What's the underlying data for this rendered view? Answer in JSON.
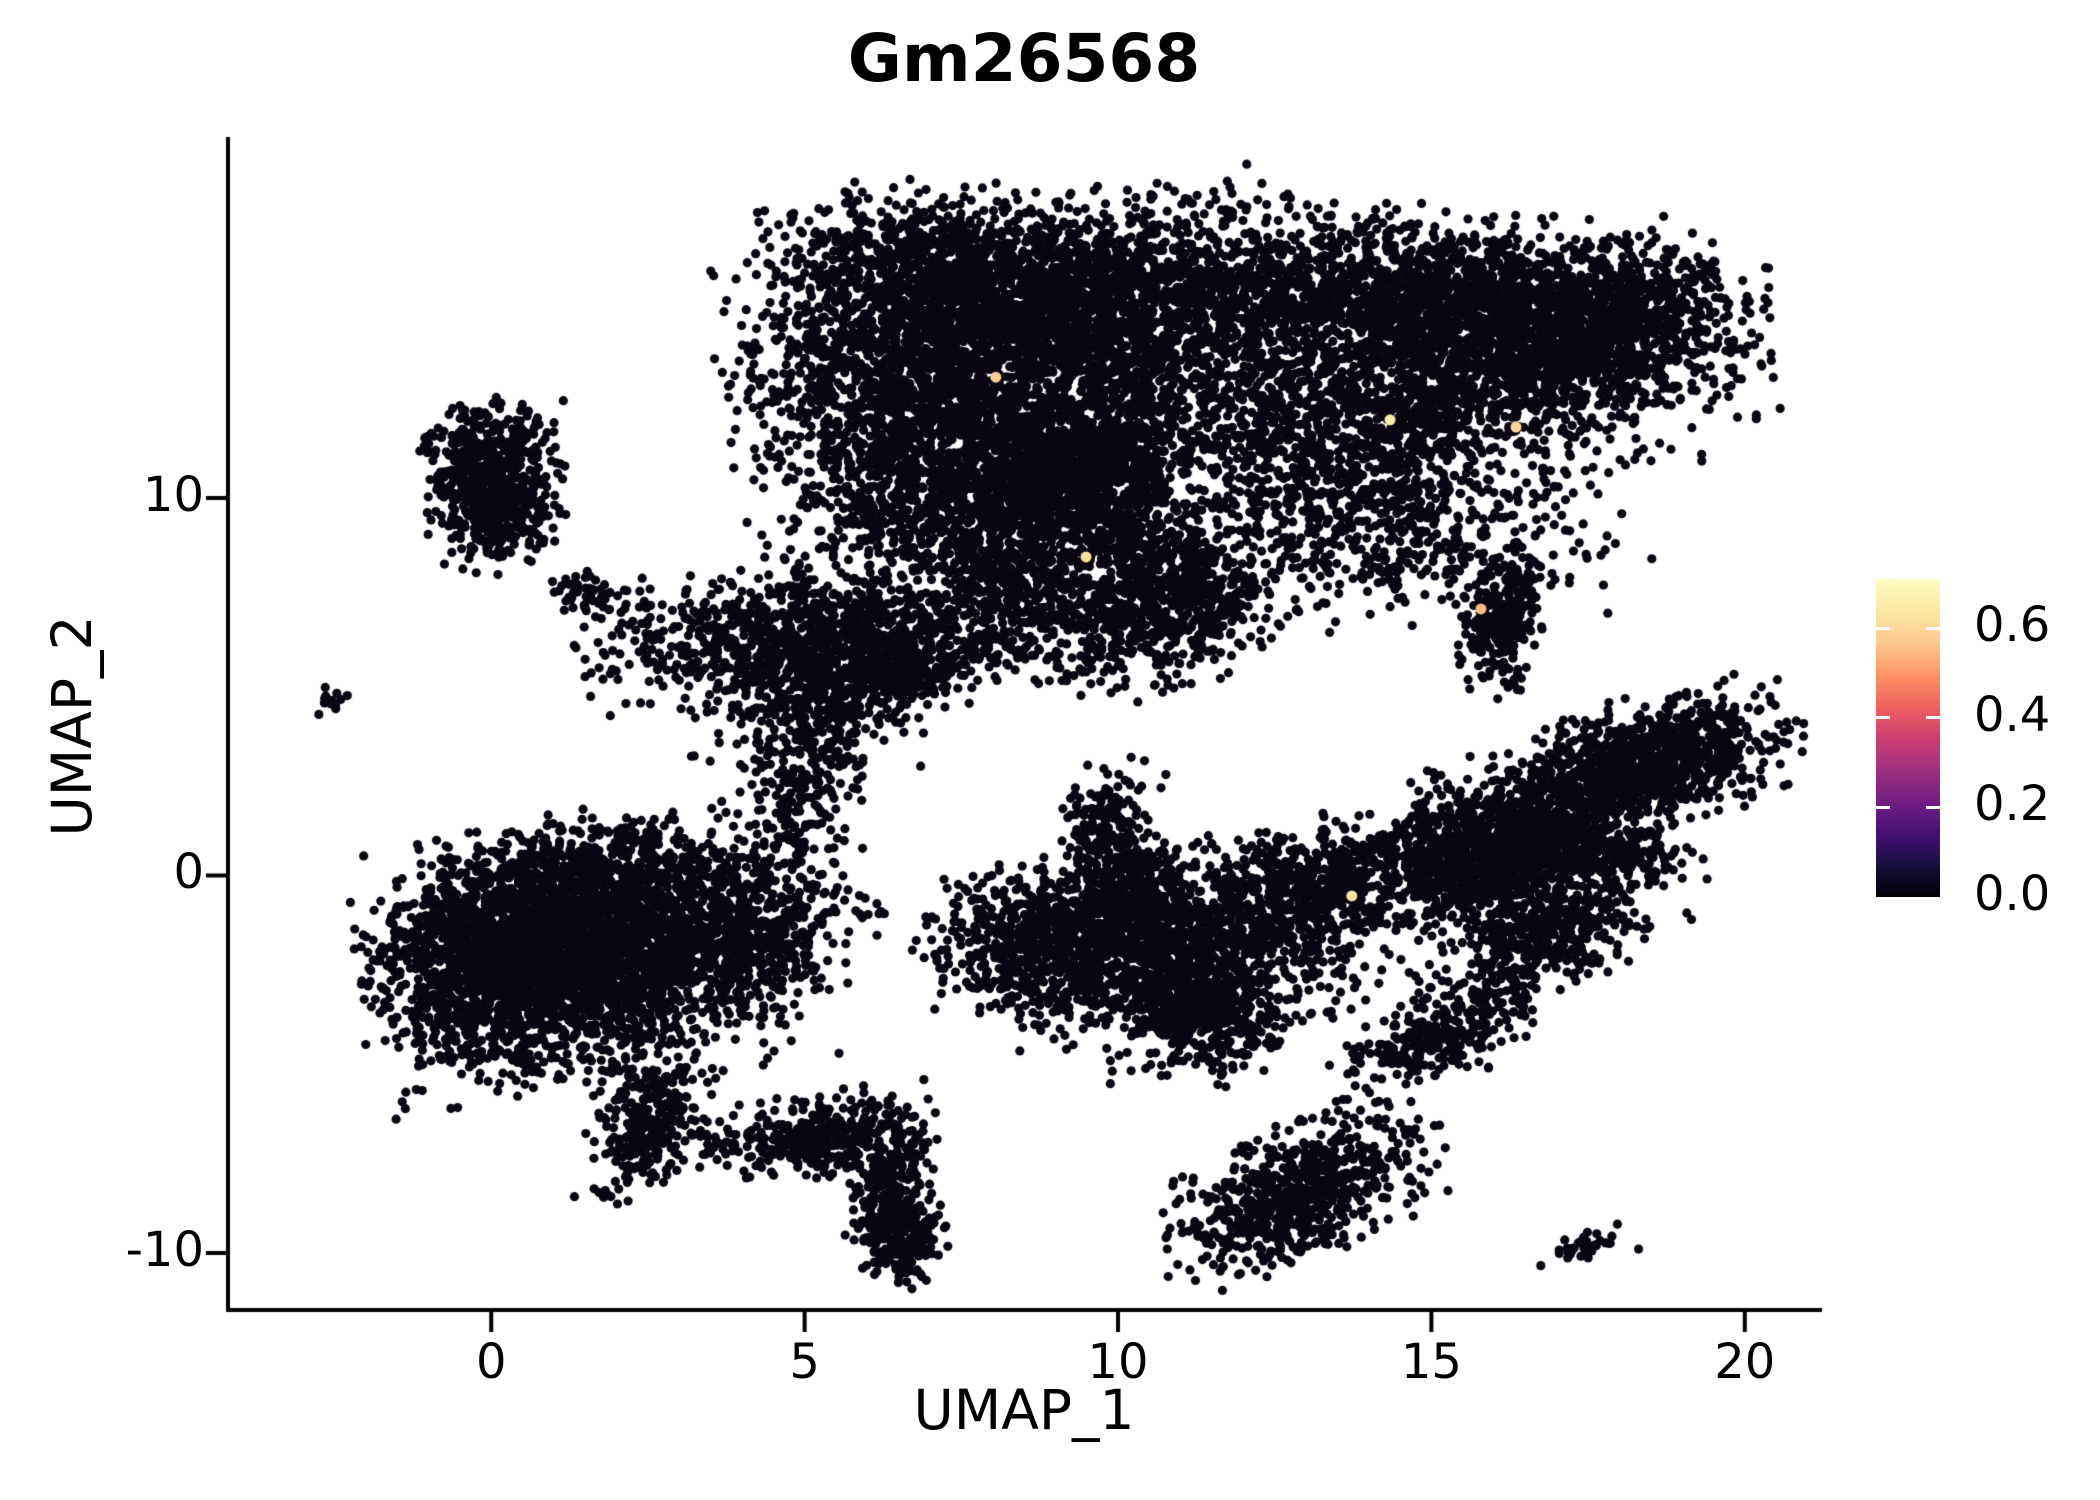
{
  "figure": {
    "title": "Gm26568",
    "xlabel": "UMAP_1",
    "ylabel": "UMAP_2"
  },
  "chart_data": {
    "type": "scatter",
    "subtype": "umap-feature-plot",
    "title": "Gm26568",
    "xlabel": "UMAP_1",
    "ylabel": "UMAP_2",
    "xlim": [
      -4.2,
      21.2
    ],
    "ylim": [
      -11.51,
      19.51
    ],
    "x_ticks": [
      0,
      5,
      10,
      15,
      20
    ],
    "y_ticks": [
      -10,
      0,
      10
    ],
    "grid": false,
    "legend_position": "right",
    "background": "#ffffff",
    "axis_color": "#000000",
    "point_color": "#0a0612",
    "point_radius_px": 4.6,
    "colorbar": {
      "vmin": 0.0,
      "vmax": 0.71,
      "ticks": [
        0.0,
        0.2,
        0.4,
        0.6
      ],
      "tick_labels": [
        "0.0",
        "0.2",
        "0.4",
        "0.6"
      ],
      "colormap": "magma",
      "stops": [
        "#000004",
        "#180f3e",
        "#451077",
        "#721f81",
        "#9f2f7f",
        "#cd4071",
        "#f1605d",
        "#fd9567",
        "#fec98d",
        "#fbe8a4",
        "#fcfdbf"
      ]
    },
    "seed": 42,
    "clusters": [
      {
        "id": "top-left-lobe-core",
        "n": 2600,
        "u": 8.28,
        "v": 14.71,
        "su": 1.91,
        "sv": 1.3,
        "rot": -10
      },
      {
        "id": "top-left-lobe-lower",
        "n": 1500,
        "u": 8.12,
        "v": 10.74,
        "su": 1.6,
        "sv": 1.3,
        "rot": -15
      },
      {
        "id": "top-left-lobe-upper",
        "n": 600,
        "u": 7.0,
        "v": 16.44,
        "su": 1.28,
        "sv": 0.8,
        "rot": 0
      },
      {
        "id": "top-dark-knot",
        "n": 700,
        "u": 9.31,
        "v": 10.61,
        "su": 0.72,
        "sv": 0.9,
        "rot": 0
      },
      {
        "id": "top-bridge-sparse",
        "n": 700,
        "u": 11.15,
        "v": 14.18,
        "su": 1.44,
        "sv": 1.7,
        "rot": 0
      },
      {
        "id": "top-right-lobe-upper",
        "n": 2000,
        "u": 15.3,
        "v": 15.24,
        "su": 2.07,
        "sv": 1.0,
        "rot": 5
      },
      {
        "id": "top-right-lobe-mid",
        "n": 1400,
        "u": 14.98,
        "v": 12.6,
        "su": 2.23,
        "sv": 1.1,
        "rot": -8
      },
      {
        "id": "top-right-tip",
        "n": 500,
        "u": 17.85,
        "v": 14.45,
        "su": 0.96,
        "sv": 0.9,
        "rot": -30
      },
      {
        "id": "top-right-lower-sparse",
        "n": 700,
        "u": 14.18,
        "v": 9.42,
        "su": 1.75,
        "sv": 1.2,
        "rot": 0
      },
      {
        "id": "top-left-tail",
        "n": 450,
        "u": 8.2,
        "v": 7.7,
        "su": 0.88,
        "sv": 1.19,
        "rot": 0
      },
      {
        "id": "top-beak",
        "n": 650,
        "u": 10.75,
        "v": 7.3,
        "su": 0.88,
        "sv": 1.0,
        "rot": -20
      },
      {
        "id": "top-under-scatter",
        "n": 350,
        "u": 9.55,
        "v": 8.36,
        "su": 1.12,
        "sv": 1.32,
        "rot": 0
      },
      {
        "id": "top-left-edge-scatter",
        "n": 450,
        "u": 6.2,
        "v": 12.07,
        "su": 0.88,
        "sv": 1.5,
        "rot": 0
      },
      {
        "id": "upper-left-island-top",
        "n": 420,
        "u": 0.02,
        "v": 11.0,
        "su": 0.48,
        "sv": 0.75,
        "rot": 0
      },
      {
        "id": "upper-left-island-bottom",
        "n": 260,
        "u": 0.06,
        "v": 9.42,
        "su": 0.51,
        "sv": 0.58,
        "rot": 0
      },
      {
        "id": "far-left-dash",
        "n": 14,
        "u": -2.63,
        "v": 4.62,
        "su": 0.16,
        "sv": 0.19,
        "rot": 0
      },
      {
        "id": "small-trail-knot",
        "n": 45,
        "u": 1.42,
        "v": 7.56,
        "su": 0.22,
        "sv": 0.26,
        "rot": 0
      },
      {
        "id": "small-trail-dots",
        "n": 16,
        "u": 1.98,
        "v": 7.28,
        "su": 0.4,
        "sv": 0.21,
        "rot": -15
      },
      {
        "id": "mid-left-cap",
        "n": 900,
        "u": 5.09,
        "v": 6.37,
        "su": 1.52,
        "sv": 0.85,
        "rot": -5
      },
      {
        "id": "mid-left-cap-arm",
        "n": 300,
        "u": 6.52,
        "v": 5.44,
        "su": 0.72,
        "sv": 0.58,
        "rot": -15
      },
      {
        "id": "mid-left-under",
        "n": 250,
        "u": 4.93,
        "v": 4.65,
        "su": 0.88,
        "sv": 0.79,
        "rot": 0
      },
      {
        "id": "mid-left-trail",
        "n": 160,
        "u": 5.09,
        "v": 3.06,
        "su": 0.48,
        "sv": 1.06,
        "rot": 0
      },
      {
        "id": "mid-left-trail-low",
        "n": 80,
        "u": 4.77,
        "v": 1.47,
        "su": 0.4,
        "sv": 0.79,
        "rot": 0
      },
      {
        "id": "left-island-main",
        "n": 2400,
        "u": 1.58,
        "v": -2.11,
        "su": 1.52,
        "sv": 1.45,
        "rot": -8
      },
      {
        "id": "left-island-west",
        "n": 900,
        "u": 0.14,
        "v": -2.24,
        "su": 0.88,
        "sv": 1.25,
        "rot": 0
      },
      {
        "id": "left-island-tail",
        "n": 500,
        "u": 3.97,
        "v": -1.44,
        "su": 0.96,
        "sv": 0.93,
        "rot": -12
      },
      {
        "id": "left-island-top-edge",
        "n": 400,
        "u": 1.74,
        "v": 0.15,
        "su": 1.28,
        "sv": 0.66,
        "rot": 0
      },
      {
        "id": "center-arm-tip",
        "n": 180,
        "u": 9.79,
        "v": 1.07,
        "su": 0.32,
        "sv": 0.93,
        "rot": 20
      },
      {
        "id": "center-arm-base",
        "n": 250,
        "u": 10.27,
        "v": -0.38,
        "su": 0.48,
        "sv": 0.79,
        "rot": 0
      },
      {
        "id": "center-west-wing",
        "n": 800,
        "u": 9.0,
        "v": -1.71,
        "su": 0.96,
        "sv": 0.93,
        "rot": -8
      },
      {
        "id": "center-body",
        "n": 1200,
        "u": 11.31,
        "v": -1.97,
        "su": 1.28,
        "sv": 1.2,
        "rot": -15
      },
      {
        "id": "center-south-point",
        "n": 350,
        "u": 11.39,
        "v": -3.56,
        "su": 0.56,
        "sv": 0.66,
        "rot": 30
      },
      {
        "id": "center-east-arm",
        "n": 450,
        "u": 13.38,
        "v": -0.38,
        "su": 0.88,
        "sv": 0.74,
        "rot": -10
      },
      {
        "id": "right-top-bar",
        "n": 700,
        "u": 18.72,
        "v": 3.06,
        "su": 0.96,
        "sv": 0.74,
        "rot": -12
      },
      {
        "id": "right-upper-diagonal",
        "n": 600,
        "u": 17.21,
        "v": 1.99,
        "su": 1.12,
        "sv": 0.79,
        "rot": -25
      },
      {
        "id": "right-central-knot",
        "n": 700,
        "u": 16.09,
        "v": 0.54,
        "su": 0.8,
        "sv": 1.06,
        "rot": 0
      },
      {
        "id": "right-mid-arm",
        "n": 250,
        "u": 17.69,
        "v": 0.6,
        "su": 0.72,
        "sv": 0.4,
        "rot": 5
      },
      {
        "id": "right-lower-arm",
        "n": 450,
        "u": 16.81,
        "v": -1.58,
        "su": 0.96,
        "sv": 0.74,
        "rot": -28
      },
      {
        "id": "right-connector",
        "n": 200,
        "u": 14.98,
        "v": 0.15,
        "su": 0.64,
        "sv": 0.66,
        "rot": 0
      },
      {
        "id": "right-comma",
        "n": 280,
        "u": 16.12,
        "v": 6.77,
        "su": 0.29,
        "sv": 0.85,
        "rot": 15
      },
      {
        "id": "right-small-blob",
        "n": 260,
        "u": 15.1,
        "v": -4.3,
        "su": 0.72,
        "sv": 0.48,
        "rot": -18
      },
      {
        "id": "bottom-left-knot",
        "n": 300,
        "u": 2.5,
        "v": -6.53,
        "su": 0.41,
        "sv": 0.93,
        "rot": 10
      },
      {
        "id": "bottom-left-dots",
        "n": 25,
        "u": 3.73,
        "v": -7.0,
        "su": 0.48,
        "sv": 0.26,
        "rot": 0
      },
      {
        "id": "bottom-arc",
        "n": 380,
        "u": 5.33,
        "v": -6.87,
        "su": 0.77,
        "sv": 0.48,
        "rot": -8
      },
      {
        "id": "bottom-arc-descend",
        "n": 150,
        "u": 6.36,
        "v": -8.2,
        "su": 0.29,
        "sv": 0.79,
        "rot": 25
      },
      {
        "id": "bottom-arc-tail",
        "n": 220,
        "u": 6.56,
        "v": -9.52,
        "su": 0.29,
        "sv": 0.6,
        "rot": 0
      },
      {
        "id": "bottom-center-island",
        "n": 700,
        "u": 12.9,
        "v": -8.38,
        "su": 0.99,
        "sv": 0.75,
        "rot": -25
      },
      {
        "id": "bottom-right-dash",
        "n": 40,
        "u": 17.5,
        "v": -9.84,
        "su": 0.32,
        "sv": 0.21,
        "rot": -10
      }
    ],
    "highlight_points": [
      {
        "u": 9.49,
        "v": 8.44,
        "value": 0.62
      },
      {
        "u": 14.34,
        "v": 12.07,
        "value": 0.66
      },
      {
        "u": 16.35,
        "v": 11.88,
        "value": 0.6
      },
      {
        "u": 15.79,
        "v": 7.06,
        "value": 0.55
      },
      {
        "u": 13.73,
        "v": -0.54,
        "value": 0.63
      },
      {
        "u": 8.05,
        "v": 13.2,
        "value": 0.58
      }
    ]
  }
}
